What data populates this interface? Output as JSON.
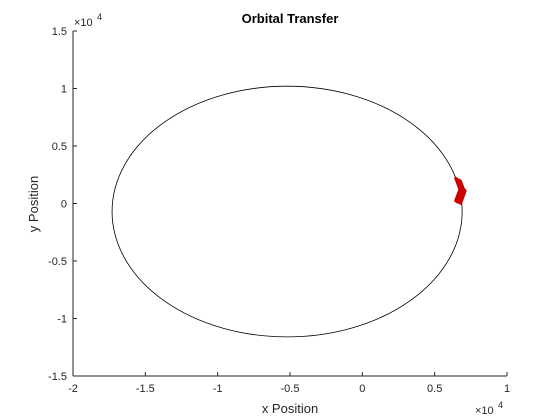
{
  "chart_data": {
    "type": "line",
    "title": "Orbital Transfer",
    "xlabel": "x Position",
    "ylabel": "y Position",
    "xlim": [
      -20000,
      10000
    ],
    "ylim": [
      -15000,
      15000
    ],
    "x_ticks": [
      -20000,
      -15000,
      -10000,
      -5000,
      0,
      5000,
      10000
    ],
    "y_ticks": [
      -15000,
      -10000,
      -5000,
      0,
      5000,
      10000,
      15000
    ],
    "x_tick_labels": [
      "-2",
      "-1.5",
      "-1",
      "-0.5",
      "0",
      "0.5",
      "1"
    ],
    "y_tick_labels": [
      "-1.5",
      "-1",
      "-0.5",
      "0",
      "0.5",
      "1",
      "1.5"
    ],
    "x_exponent": {
      "base": "×10",
      "power": "4"
    },
    "y_exponent": {
      "base": "×10",
      "power": "4"
    },
    "grid": false,
    "series": [
      {
        "style": "orbit-ellipse",
        "color": "#000000",
        "center": [
          -5200,
          -700
        ],
        "semi_axis_x": 12100,
        "semi_axis_y": 10900
      },
      {
        "style": "burn-segments",
        "color": "#cc0000",
        "x_range": [
          6400,
          7100
        ],
        "y_range": [
          -100,
          2300
        ]
      }
    ]
  }
}
